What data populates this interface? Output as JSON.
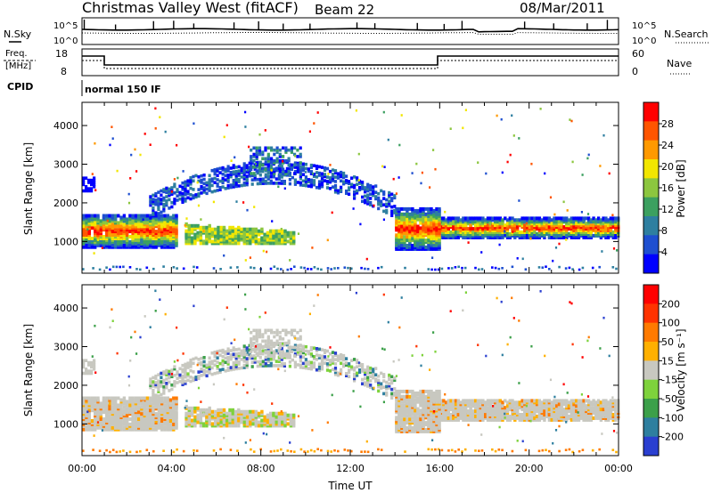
{
  "header": {
    "title": "Christmas Valley West (fitACF)",
    "beam": "Beam 22",
    "date": "08/Mar/2011"
  },
  "status_panels": {
    "nsky_label": "N.Sky",
    "nsearch_label": "N.Search",
    "noise_ticks": [
      "10^5",
      "10^0"
    ],
    "noise_ticks_right": [
      "10^5",
      "10^0"
    ],
    "freq_label_line1": "Freq.",
    "freq_label_line2": "[MHz]",
    "freq_ticks": [
      "18",
      "8"
    ],
    "nave_label": "Nave",
    "nave_ticks": [
      "60",
      "0"
    ],
    "cpid_label": "CPID",
    "cpid_value": "normal 150 IF"
  },
  "colorbars": {
    "power": {
      "label": "Power [dB]",
      "ticks": [
        "28",
        "24",
        "20",
        "16",
        "12",
        "8",
        "4"
      ],
      "colors": [
        "#0000ff",
        "#1e4fd0",
        "#2e7fa0",
        "#3ca060",
        "#8cc63f",
        "#f2e600",
        "#ff9900",
        "#ff5500",
        "#ff0000"
      ]
    },
    "velocity": {
      "label": "Velocity [m s⁻¹]",
      "ticks": [
        "200",
        "100",
        "50",
        "15",
        "-15",
        "-50",
        "-100",
        "-200"
      ],
      "colors": [
        "#2a3fd0",
        "#2e7f9f",
        "#3ca04a",
        "#7ed23c",
        "#c8c8c0",
        "#ffb000",
        "#ff7a00",
        "#ff3300",
        "#ff0000"
      ]
    }
  },
  "chart_data": [
    {
      "type": "heatmap",
      "name": "power",
      "ylabel": "Slant Range [km]",
      "xlabel": "",
      "y_ticks": [
        "1000",
        "2000",
        "3000",
        "4000"
      ],
      "y_range": [
        180,
        4600
      ],
      "x_range_hours": [
        0,
        24
      ],
      "regions": [
        {
          "t0": 0.0,
          "t1": 4.2,
          "r0": 950,
          "r1": 1800,
          "band": "ionospheric-low"
        },
        {
          "t0": 4.5,
          "t1": 9.5,
          "r0": 1050,
          "r1": 1450,
          "band": "ionospheric-low"
        },
        {
          "t0": 14.0,
          "t1": 16.0,
          "r0": 900,
          "r1": 1900,
          "band": "ionospheric-low"
        },
        {
          "t0": 16.0,
          "t1": 24.0,
          "r0": 1150,
          "r1": 1700,
          "band": "ionospheric-low"
        },
        {
          "t0": 3.0,
          "t1": 14.0,
          "r0": 2100,
          "r1": 3400,
          "band": "ionospheric-high"
        }
      ]
    },
    {
      "type": "heatmap",
      "name": "velocity",
      "ylabel": "Slant Range [km]",
      "xlabel": "Time UT",
      "y_ticks": [
        "1000",
        "2000",
        "3000",
        "4000"
      ],
      "x_ticks": [
        "00:00",
        "04:00",
        "08:00",
        "12:00",
        "16:00",
        "20:00",
        "00:00"
      ],
      "y_range": [
        180,
        4600
      ],
      "x_range_hours": [
        0,
        24
      ]
    }
  ]
}
